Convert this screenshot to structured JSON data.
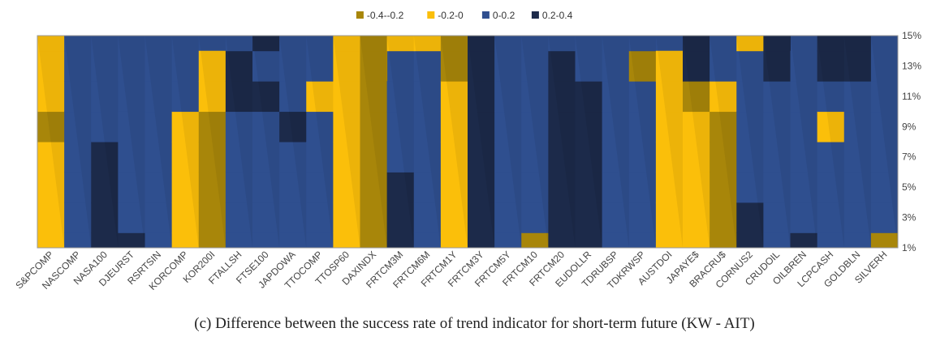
{
  "chart_data": {
    "type": "heatmap",
    "subtype": "surface-contour",
    "categories": [
      "S&PCOMP",
      "NASCOMP",
      "NASA100",
      "DJEURST",
      "RSRTSIN",
      "KORCOMP",
      "KOR200I",
      "FTALLSH",
      "FTSE100",
      "JAPDOWA",
      "TTOCOMP",
      "TTOSP60",
      "DAXINDX",
      "FRTCM3M",
      "FRTCM6M",
      "FRTCM1Y",
      "FRTCM3Y",
      "FRTCM5Y",
      "FRTCM10",
      "FRTCM20",
      "EUDOLLR",
      "TDRUBSP",
      "TDKRWSP",
      "AUSTDOI",
      "JAPAYE$",
      "BRACRU$",
      "CORNUS2",
      "CRUDOIL",
      "OILBREN",
      "LCPCASH",
      "GOLDBLN",
      "SILVERH"
    ],
    "y_ticks": [
      "1%",
      "3%",
      "5%",
      "7%",
      "9%",
      "11%",
      "13%",
      "15%"
    ],
    "y_values": [
      1,
      3,
      5,
      7,
      9,
      11,
      13,
      15
    ],
    "legend": {
      "position": "top",
      "entries": [
        {
          "label": "-0.4--0.2",
          "color": "#a8860a"
        },
        {
          "label": "-0.2-0",
          "color": "#fbbf0a"
        },
        {
          "label": "0-0.2",
          "color": "#2f4f8f"
        },
        {
          "label": "0.2-0.4",
          "color": "#1c2a4a"
        }
      ]
    },
    "grid": false,
    "matrix": [
      [
        -1,
        -1,
        -1,
        -1,
        -2,
        -1,
        -1,
        -1
      ],
      [
        1,
        1,
        1,
        1,
        1,
        1,
        1,
        1
      ],
      [
        2,
        2,
        2,
        2,
        1,
        1,
        0,
        0
      ],
      [
        2,
        1,
        1,
        1,
        1,
        0,
        0,
        0
      ],
      [
        1,
        1,
        1,
        1,
        1,
        1,
        1,
        0
      ],
      [
        -1,
        -1,
        -1,
        -1,
        -1,
        1,
        1,
        1
      ],
      [
        -2,
        -2,
        -2,
        -2,
        -2,
        -1,
        -1,
        0
      ],
      [
        1,
        1,
        1,
        1,
        1,
        2,
        2,
        1
      ],
      [
        1,
        1,
        1,
        1,
        1,
        2,
        1,
        2
      ],
      [
        1,
        1,
        1,
        1,
        2,
        1,
        1,
        1
      ],
      [
        1,
        1,
        1,
        1,
        1,
        -1,
        1,
        1
      ],
      [
        -1,
        -1,
        -1,
        -1,
        -1,
        -1,
        -1,
        -1
      ],
      [
        -2,
        -2,
        -2,
        -2,
        -2,
        -2,
        -2,
        -2
      ],
      [
        2,
        2,
        2,
        1,
        1,
        1,
        0,
        -1
      ],
      [
        1,
        1,
        1,
        1,
        1,
        1,
        0,
        -1
      ],
      [
        -1,
        -1,
        -1,
        -1,
        -1,
        -1,
        -2,
        -2
      ],
      [
        2,
        2,
        2,
        2,
        2,
        2,
        2,
        2
      ],
      [
        1,
        1,
        1,
        1,
        1,
        1,
        1,
        1
      ],
      [
        -2,
        1,
        1,
        1,
        1,
        1,
        1,
        1
      ],
      [
        2,
        2,
        2,
        2,
        2,
        2,
        2,
        1
      ],
      [
        2,
        2,
        2,
        2,
        2,
        2,
        1,
        0
      ],
      [
        1,
        1,
        1,
        1,
        1,
        1,
        1,
        1
      ],
      [
        1,
        1,
        1,
        1,
        1,
        1,
        -2,
        1
      ],
      [
        -1,
        -1,
        -1,
        -1,
        -1,
        -1,
        -1,
        0
      ],
      [
        -1,
        -1,
        -1,
        -1,
        -1,
        -2,
        2,
        2
      ],
      [
        -2,
        -2,
        -2,
        -2,
        -2,
        -1,
        1,
        1
      ],
      [
        2,
        2,
        1,
        1,
        1,
        1,
        1,
        -1
      ],
      [
        1,
        1,
        1,
        1,
        1,
        1,
        2,
        2
      ],
      [
        2,
        1,
        1,
        1,
        1,
        1,
        1,
        0
      ],
      [
        1,
        1,
        1,
        1,
        -1,
        1,
        2,
        2
      ],
      [
        1,
        1,
        1,
        1,
        1,
        1,
        2,
        2
      ],
      [
        -2,
        1,
        1,
        1,
        1,
        1,
        1,
        1
      ]
    ]
  },
  "caption": "(c) Difference between the success rate of trend indicator for short-term future (KW - AIT)"
}
